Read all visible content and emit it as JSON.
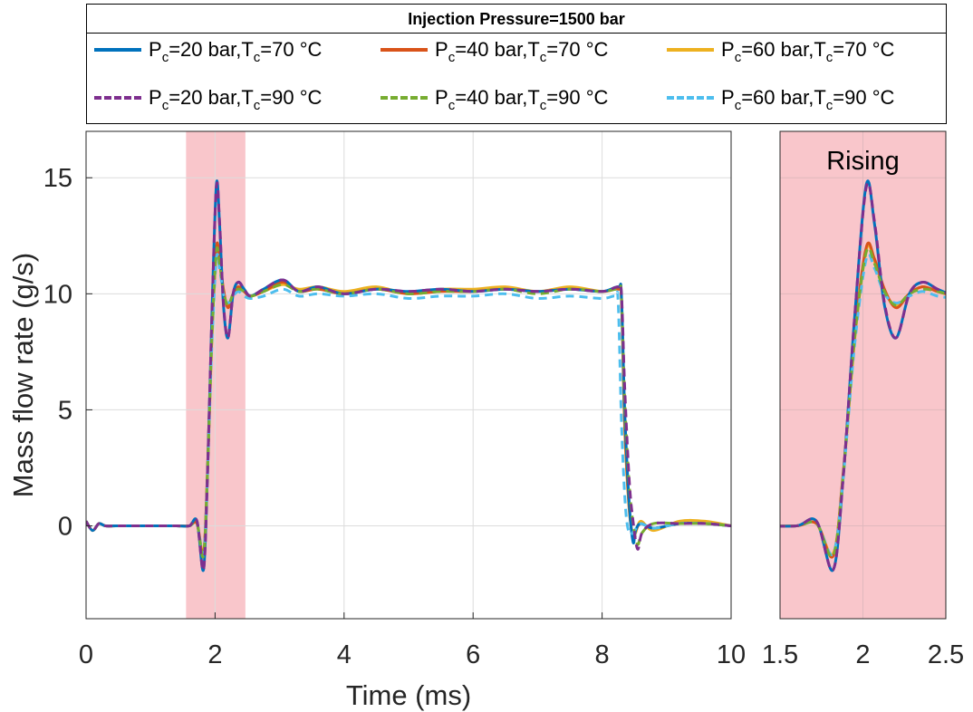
{
  "legend": {
    "title": "Injection Pressure=1500 bar",
    "entries": [
      {
        "p": "20",
        "t": "70",
        "color": "#0072BD",
        "style": "solid"
      },
      {
        "p": "40",
        "t": "70",
        "color": "#D95319",
        "style": "solid"
      },
      {
        "p": "60",
        "t": "70",
        "color": "#EDB120",
        "style": "solid"
      },
      {
        "p": "20",
        "t": "90",
        "color": "#7E2F8E",
        "style": "dashed"
      },
      {
        "p": "40",
        "t": "90",
        "color": "#77AC30",
        "style": "dashed"
      },
      {
        "p": "60",
        "t": "90",
        "color": "#4DBEEE",
        "style": "dashed"
      }
    ],
    "label_parts": {
      "p_sym": "P",
      "t_sym": "T",
      "sub": "c",
      "p_unit": "=",
      "mid": " bar,",
      "t_unit": " °C"
    }
  },
  "chart_data": [
    {
      "type": "line",
      "xlabel": "Time (ms)",
      "ylabel": "Mass flow rate (g/s)",
      "xlim": [
        0,
        10
      ],
      "ylim": [
        -4,
        17
      ],
      "xticks": [
        "0",
        "2",
        "4",
        "6",
        "8",
        "10"
      ],
      "yticks": [
        "0",
        "5",
        "10",
        "15"
      ],
      "xtick_values": [
        0,
        2,
        4,
        6,
        8,
        10
      ],
      "ytick_values": [
        0,
        5,
        10,
        15
      ],
      "grid": true,
      "highlight": {
        "x_start": 1.55,
        "x_end": 2.47,
        "color": "#F9C6CB"
      },
      "series": [
        {
          "legend_index": 0,
          "x": [
            0,
            0.1,
            0.2,
            0.3,
            0.5,
            1.0,
            1.4,
            1.6,
            1.72,
            1.82,
            1.88,
            1.95,
            2.02,
            2.07,
            2.13,
            2.2,
            2.28,
            2.36,
            2.45,
            2.55,
            2.75,
            3.05,
            3.3,
            3.6,
            4.0,
            4.5,
            5.0,
            5.5,
            6.0,
            6.5,
            7.0,
            7.5,
            8.0,
            8.25,
            8.3,
            8.35,
            8.42,
            8.48,
            8.52,
            8.6,
            8.8,
            9.2,
            9.6,
            10.0
          ],
          "y": [
            0.2,
            -0.2,
            0.1,
            0,
            0,
            0,
            0,
            0,
            0.2,
            -1.9,
            2.0,
            9.0,
            14.7,
            13.0,
            9.5,
            8.1,
            10.0,
            10.5,
            10.2,
            9.9,
            10.2,
            10.6,
            10.1,
            10.3,
            10.0,
            10.2,
            10.1,
            10.2,
            10.1,
            10.2,
            10.1,
            10.2,
            10.1,
            10.3,
            9.9,
            5.0,
            1.0,
            -0.7,
            -0.2,
            0.1,
            -0.1,
            0.1,
            0.1,
            0
          ]
        },
        {
          "legend_index": 1,
          "x": [
            0,
            0.1,
            0.2,
            0.3,
            0.5,
            1.0,
            1.4,
            1.6,
            1.72,
            1.82,
            1.88,
            1.95,
            2.02,
            2.07,
            2.13,
            2.2,
            2.28,
            2.36,
            2.45,
            2.55,
            2.75,
            3.05,
            3.3,
            3.6,
            4.0,
            4.5,
            5.0,
            5.5,
            6.0,
            6.5,
            7.0,
            7.5,
            8.0,
            8.25,
            8.3,
            8.35,
            8.42,
            8.48,
            8.52,
            8.6,
            8.8,
            9.2,
            9.6,
            10.0
          ],
          "y": [
            0.2,
            -0.2,
            0.1,
            0,
            0,
            0,
            0,
            0,
            0.1,
            -1.3,
            2.2,
            8.2,
            12.0,
            11.5,
            10.2,
            9.4,
            10.0,
            10.3,
            10.1,
            9.9,
            10.1,
            10.5,
            10.1,
            10.2,
            10.0,
            10.2,
            10.0,
            10.1,
            10.1,
            10.2,
            10.1,
            10.2,
            10.1,
            10.2,
            9.8,
            4.5,
            0.8,
            -0.5,
            -0.2,
            0.1,
            -0.1,
            0.1,
            0.1,
            0
          ]
        },
        {
          "legend_index": 2,
          "x": [
            0,
            0.1,
            0.2,
            0.3,
            0.5,
            1.0,
            1.4,
            1.6,
            1.72,
            1.82,
            1.88,
            1.95,
            2.02,
            2.07,
            2.13,
            2.2,
            2.28,
            2.36,
            2.45,
            2.55,
            2.75,
            3.05,
            3.3,
            3.6,
            4.0,
            4.5,
            5.0,
            5.5,
            6.0,
            6.5,
            7.0,
            7.5,
            8.0,
            8.25,
            8.3,
            8.35,
            8.42,
            8.48,
            8.52,
            8.6,
            8.8,
            9.2,
            9.6,
            10.0
          ],
          "y": [
            0.2,
            -0.2,
            0.1,
            0,
            0,
            0,
            0,
            0,
            0.1,
            -1.2,
            2.1,
            8.0,
            11.9,
            11.4,
            10.1,
            9.5,
            10.0,
            10.3,
            10.1,
            9.9,
            10.1,
            10.4,
            10.2,
            10.3,
            10.1,
            10.3,
            10.0,
            10.2,
            10.2,
            10.3,
            10.1,
            10.3,
            10.1,
            10.2,
            9.7,
            4.2,
            0.7,
            -0.4,
            -0.3,
            0.2,
            -0.2,
            0.2,
            0.2,
            0
          ]
        },
        {
          "legend_index": 3,
          "x": [
            0,
            0.1,
            0.2,
            0.3,
            0.5,
            1.0,
            1.4,
            1.6,
            1.72,
            1.82,
            1.88,
            1.95,
            2.02,
            2.07,
            2.13,
            2.2,
            2.28,
            2.36,
            2.45,
            2.55,
            2.75,
            3.05,
            3.3,
            3.6,
            4.0,
            4.5,
            5.0,
            5.5,
            6.0,
            6.5,
            7.0,
            7.5,
            8.0,
            8.25,
            8.3,
            8.35,
            8.42,
            8.48,
            8.55,
            8.62,
            8.8,
            9.2,
            9.6,
            10.0
          ],
          "y": [
            0.2,
            -0.2,
            0.1,
            0,
            0,
            0,
            0,
            0,
            0.2,
            -1.9,
            2.0,
            9.0,
            14.6,
            13.1,
            9.6,
            8.1,
            10.0,
            10.5,
            10.2,
            9.9,
            10.2,
            10.6,
            10.1,
            10.3,
            10.0,
            10.2,
            10.1,
            10.2,
            10.1,
            10.2,
            10.1,
            10.2,
            10.1,
            10.3,
            10.0,
            6.0,
            2.0,
            0.2,
            -1.0,
            -0.3,
            0.1,
            0.1,
            0.1,
            0
          ]
        },
        {
          "legend_index": 4,
          "x": [
            0,
            0.1,
            0.2,
            0.3,
            0.5,
            1.0,
            1.4,
            1.6,
            1.72,
            1.82,
            1.88,
            1.95,
            2.02,
            2.07,
            2.13,
            2.2,
            2.28,
            2.36,
            2.45,
            2.55,
            2.75,
            3.05,
            3.3,
            3.6,
            4.0,
            4.5,
            5.0,
            5.5,
            6.0,
            6.5,
            7.0,
            7.5,
            8.0,
            8.25,
            8.3,
            8.35,
            8.42,
            8.48,
            8.55,
            8.62,
            8.8,
            9.2,
            9.6,
            10.0
          ],
          "y": [
            0.2,
            -0.2,
            0.1,
            0,
            0,
            0,
            0,
            0,
            0.1,
            -1.3,
            2.1,
            8.1,
            11.8,
            11.3,
            10.1,
            9.5,
            10.0,
            10.2,
            10.1,
            9.9,
            10.1,
            10.4,
            10.1,
            10.2,
            10.0,
            10.2,
            10.0,
            10.1,
            10.1,
            10.2,
            10.0,
            10.2,
            10.1,
            10.2,
            9.9,
            5.5,
            1.8,
            0.1,
            -0.8,
            -0.3,
            0.1,
            0.1,
            0.1,
            0
          ]
        },
        {
          "legend_index": 5,
          "x": [
            0,
            0.1,
            0.2,
            0.3,
            0.5,
            1.0,
            1.4,
            1.6,
            1.72,
            1.82,
            1.88,
            1.95,
            2.02,
            2.07,
            2.13,
            2.2,
            2.28,
            2.36,
            2.45,
            2.55,
            2.75,
            3.05,
            3.3,
            3.6,
            4.0,
            4.5,
            5.0,
            5.5,
            6.0,
            6.5,
            7.0,
            7.5,
            8.0,
            8.2,
            8.25,
            8.3,
            8.36,
            8.42,
            8.5,
            8.6,
            8.8,
            9.2,
            9.6,
            10.0
          ],
          "y": [
            0.2,
            -0.2,
            0.1,
            0,
            0,
            0,
            0,
            0,
            0.1,
            -1.2,
            2.0,
            7.8,
            11.5,
            11.1,
            10.0,
            9.6,
            9.9,
            10.1,
            9.9,
            9.8,
            9.9,
            10.2,
            9.9,
            10.0,
            9.9,
            10.0,
            9.8,
            9.9,
            9.9,
            10.0,
            9.8,
            9.9,
            9.8,
            9.9,
            9.6,
            4.5,
            0.9,
            -0.3,
            -0.2,
            0.1,
            -0.1,
            0.1,
            0.1,
            0
          ]
        }
      ]
    },
    {
      "type": "line",
      "annotation": "Rising",
      "xlim": [
        1.5,
        2.5
      ],
      "ylim": [
        -4,
        17
      ],
      "xticks": [
        "1.5",
        "2",
        "2.5"
      ],
      "xtick_values": [
        1.5,
        2,
        2.5
      ],
      "ytick_values": [
        0,
        5,
        10,
        15
      ],
      "grid": true,
      "background": "#F9C6CB",
      "series_from": "chart_data.0.series"
    }
  ]
}
